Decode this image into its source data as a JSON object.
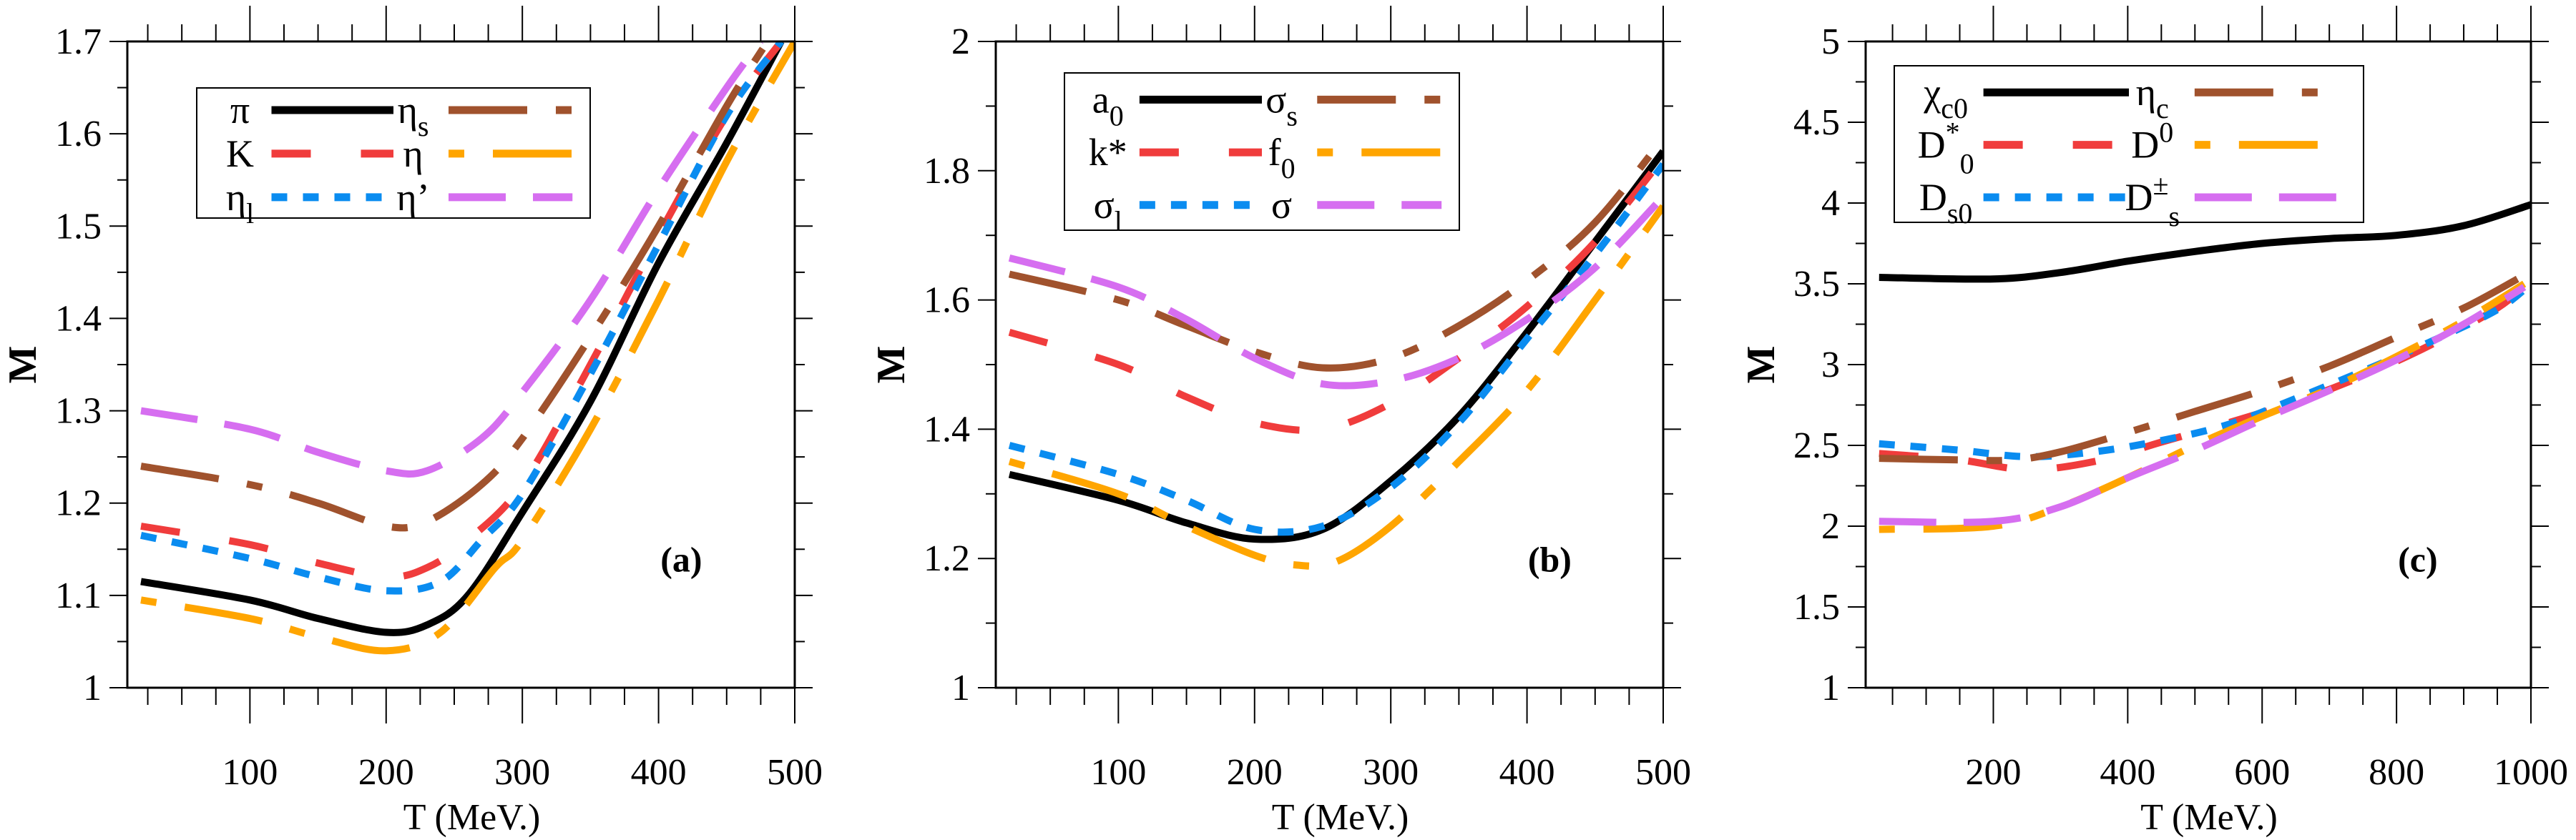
{
  "chart_data": [
    {
      "type": "line",
      "panel_label": "(a)",
      "xlabel": "T (MeV.)",
      "ylabel": "M",
      "xlim": [
        10,
        500
      ],
      "ylim": [
        1,
        1.7
      ],
      "xticks": [
        100,
        200,
        300,
        400,
        500
      ],
      "yticks": [
        1,
        1.1,
        1.2,
        1.3,
        1.4,
        1.5,
        1.6,
        1.7
      ],
      "grid": false,
      "legend_position": "top-left",
      "series": [
        {
          "name": "π",
          "base": "π",
          "sub": "",
          "sup": "",
          "color": "#000000",
          "style": "solid",
          "x": [
            20,
            100,
            150,
            200,
            230,
            260,
            300,
            350,
            400,
            450,
            490
          ],
          "y": [
            1.115,
            1.095,
            1.075,
            1.06,
            1.068,
            1.1,
            1.19,
            1.31,
            1.46,
            1.59,
            1.7
          ]
        },
        {
          "name": "K",
          "base": "K",
          "sub": "",
          "sup": "",
          "color": "#f03c3c",
          "style": "dashed",
          "x": [
            20,
            100,
            150,
            200,
            230,
            260,
            300,
            350,
            400,
            450,
            490
          ],
          "y": [
            1.175,
            1.155,
            1.135,
            1.12,
            1.13,
            1.16,
            1.22,
            1.35,
            1.49,
            1.62,
            1.7
          ]
        },
        {
          "name": "ηl",
          "base": "η",
          "sub": "l",
          "sup": "",
          "color": "#0a8cf0",
          "style": "dotted",
          "x": [
            20,
            100,
            150,
            200,
            240,
            270,
            300,
            350,
            400,
            450,
            490
          ],
          "y": [
            1.165,
            1.14,
            1.12,
            1.105,
            1.115,
            1.16,
            1.21,
            1.34,
            1.48,
            1.62,
            1.7
          ]
        },
        {
          "name": "ηs",
          "base": "η",
          "sub": "s",
          "sup": "",
          "color": "#a0522d",
          "style": "dash-dot",
          "x": [
            20,
            100,
            150,
            200,
            230,
            270,
            300,
            350,
            400,
            450,
            480
          ],
          "y": [
            1.24,
            1.22,
            1.2,
            1.175,
            1.18,
            1.22,
            1.27,
            1.38,
            1.5,
            1.63,
            1.7
          ]
        },
        {
          "name": "η",
          "base": "η",
          "sub": "",
          "sup": "",
          "color": "#ffa500",
          "style": "dot-dash",
          "x": [
            20,
            100,
            150,
            200,
            240,
            280,
            300,
            350,
            400,
            450,
            500
          ],
          "y": [
            1.095,
            1.075,
            1.055,
            1.04,
            1.06,
            1.13,
            1.16,
            1.28,
            1.42,
            1.57,
            1.7
          ]
        },
        {
          "name": "η’",
          "base": "η’",
          "sub": "",
          "sup": "",
          "color": "#d66ef0",
          "style": "long-dash",
          "x": [
            20,
            100,
            150,
            200,
            230,
            270,
            300,
            350,
            400,
            450,
            475
          ],
          "y": [
            1.3,
            1.28,
            1.255,
            1.235,
            1.235,
            1.27,
            1.32,
            1.42,
            1.54,
            1.65,
            1.7
          ]
        }
      ]
    },
    {
      "type": "line",
      "panel_label": "(b)",
      "xlabel": "T (MeV.)",
      "ylabel": "M",
      "xlim": [
        10,
        500
      ],
      "ylim": [
        1,
        2
      ],
      "xticks": [
        100,
        200,
        300,
        400,
        500
      ],
      "yticks": [
        1,
        1.2,
        1.4,
        1.6,
        1.8,
        2
      ],
      "grid": false,
      "legend_position": "top-left",
      "series": [
        {
          "name": "a0",
          "base": "a",
          "sub": "0",
          "sup": "",
          "color": "#000000",
          "style": "solid",
          "x": [
            20,
            100,
            150,
            200,
            250,
            300,
            350,
            400,
            450,
            500
          ],
          "y": [
            1.33,
            1.29,
            1.255,
            1.23,
            1.245,
            1.32,
            1.42,
            1.55,
            1.69,
            1.83
          ]
        },
        {
          "name": "k*",
          "base": "k*",
          "sub": "",
          "sup": "",
          "color": "#f03c3c",
          "style": "dashed",
          "x": [
            20,
            100,
            150,
            200,
            250,
            300,
            350,
            400,
            450,
            500
          ],
          "y": [
            1.55,
            1.5,
            1.45,
            1.41,
            1.4,
            1.44,
            1.51,
            1.59,
            1.69,
            1.82
          ]
        },
        {
          "name": "σl",
          "base": "σ",
          "sub": "l",
          "sup": "",
          "color": "#0a8cf0",
          "style": "dotted",
          "x": [
            20,
            100,
            150,
            200,
            250,
            300,
            350,
            400,
            450,
            500
          ],
          "y": [
            1.375,
            1.33,
            1.29,
            1.245,
            1.25,
            1.31,
            1.41,
            1.54,
            1.67,
            1.81
          ]
        },
        {
          "name": "σs",
          "base": "σ",
          "sub": "s",
          "sup": "",
          "color": "#a0522d",
          "style": "dash-dot",
          "x": [
            20,
            100,
            150,
            200,
            250,
            300,
            350,
            400,
            450,
            500
          ],
          "y": [
            1.64,
            1.6,
            1.56,
            1.52,
            1.495,
            1.51,
            1.56,
            1.63,
            1.72,
            1.85
          ]
        },
        {
          "name": "f0",
          "base": "f",
          "sub": "0",
          "sup": "",
          "color": "#ffa500",
          "style": "dot-dash",
          "x": [
            20,
            100,
            150,
            200,
            230,
            260,
            300,
            350,
            400,
            450,
            500
          ],
          "y": [
            1.35,
            1.3,
            1.25,
            1.205,
            1.19,
            1.195,
            1.25,
            1.35,
            1.46,
            1.6,
            1.745
          ]
        },
        {
          "name": "σ",
          "base": "σ",
          "sub": "",
          "sup": "",
          "color": "#d66ef0",
          "style": "long-dash",
          "x": [
            20,
            100,
            150,
            200,
            250,
            300,
            350,
            400,
            450,
            500
          ],
          "y": [
            1.665,
            1.62,
            1.57,
            1.51,
            1.47,
            1.475,
            1.51,
            1.57,
            1.65,
            1.76
          ]
        }
      ]
    },
    {
      "type": "line",
      "panel_label": "(c)",
      "xlabel": "T (MeV.)",
      "ylabel": "M",
      "xlim": [
        10,
        1000
      ],
      "ylim": [
        1,
        5
      ],
      "xticks": [
        200,
        400,
        600,
        800,
        1000
      ],
      "yticks": [
        1,
        1.5,
        2,
        2.5,
        3,
        3.5,
        4,
        4.5,
        5
      ],
      "grid": false,
      "legend_position": "top-left",
      "series": [
        {
          "name": "χc0",
          "base": "χ",
          "sub": "c0",
          "sup": "",
          "color": "#000000",
          "style": "solid",
          "x": [
            30,
            200,
            300,
            400,
            500,
            600,
            700,
            800,
            900,
            1000
          ],
          "y": [
            3.54,
            3.53,
            3.57,
            3.64,
            3.7,
            3.75,
            3.78,
            3.8,
            3.86,
            3.99
          ]
        },
        {
          "name": "D*0",
          "base": "D",
          "sub": "0",
          "sup": "*",
          "color": "#f03c3c",
          "style": "dashed",
          "x": [
            30,
            150,
            250,
            350,
            450,
            550,
            650,
            750,
            850,
            950,
            1000
          ],
          "y": [
            2.45,
            2.41,
            2.35,
            2.4,
            2.52,
            2.64,
            2.77,
            2.93,
            3.12,
            3.35,
            3.52
          ]
        },
        {
          "name": "Ds0",
          "base": "D",
          "sub": "s0",
          "sup": "",
          "color": "#0a8cf0",
          "style": "dotted",
          "x": [
            30,
            150,
            250,
            350,
            450,
            550,
            650,
            750,
            850,
            950,
            1000
          ],
          "y": [
            2.51,
            2.47,
            2.43,
            2.46,
            2.53,
            2.63,
            2.79,
            2.96,
            3.14,
            3.34,
            3.5
          ]
        },
        {
          "name": "ηc",
          "base": "η",
          "sub": "c",
          "sup": "",
          "color": "#a0522d",
          "style": "dash-dot",
          "x": [
            30,
            150,
            230,
            300,
            400,
            500,
            600,
            700,
            800,
            900,
            980
          ],
          "y": [
            2.42,
            2.41,
            2.41,
            2.46,
            2.58,
            2.71,
            2.84,
            2.99,
            3.17,
            3.35,
            3.53
          ]
        },
        {
          "name": "D0",
          "base": "D",
          "sub": "",
          "sup": "0",
          "color": "#ffa500",
          "style": "dot-dash",
          "x": [
            30,
            200,
            300,
            400,
            500,
            600,
            700,
            800,
            900,
            990
          ],
          "y": [
            1.98,
            2.0,
            2.12,
            2.3,
            2.5,
            2.68,
            2.85,
            3.05,
            3.27,
            3.5
          ]
        },
        {
          "name": "Ds±",
          "base": "D",
          "sub": "s",
          "sup": "±",
          "color": "#d66ef0",
          "style": "long-dash",
          "x": [
            30,
            200,
            300,
            400,
            500,
            600,
            700,
            800,
            900,
            990
          ],
          "y": [
            2.03,
            2.03,
            2.12,
            2.3,
            2.47,
            2.66,
            2.84,
            3.03,
            3.25,
            3.48
          ]
        }
      ]
    }
  ]
}
